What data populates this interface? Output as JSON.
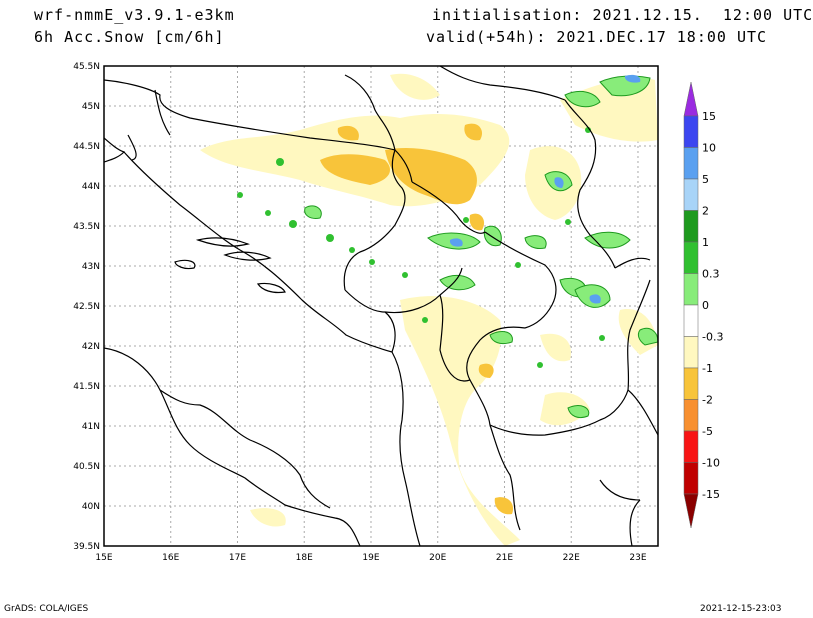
{
  "header": {
    "model": "wrf-nmmE_v3.9.1-e3km",
    "field": "6h Acc.Snow [cm/6h]",
    "init": "initialisation: 2021.12.15.  12:00 UTC",
    "valid": "valid(+54h): 2021.DEC.17 18:00 UTC"
  },
  "map": {
    "lat_labels": [
      "45.5N",
      "45N",
      "44.5N",
      "44N",
      "43.5N",
      "43N",
      "42.5N",
      "42N",
      "41.5N",
      "41N",
      "40.5N",
      "40N",
      "39.5N"
    ],
    "lon_labels": [
      "15E",
      "16E",
      "17E",
      "18E",
      "19E",
      "20E",
      "21E",
      "22E",
      "23E"
    ],
    "lon_range": [
      15.0,
      23.3
    ],
    "lat_range": [
      39.5,
      45.5
    ]
  },
  "colorbar": {
    "labels": [
      "15",
      "10",
      "5",
      "2",
      "1",
      "0.3",
      "0",
      "-0.3",
      "-1",
      "-2",
      "-5",
      "-10",
      "-15"
    ],
    "colors": [
      "#9a2be0",
      "#3c46f0",
      "#5aa0f0",
      "#a8d4f8",
      "#1e9a1e",
      "#30c030",
      "#88ec7a",
      "#ffffff",
      "#fff8c0",
      "#f8c43a",
      "#f89030",
      "#f81414",
      "#c00000",
      "#8a0000"
    ]
  },
  "footer": {
    "left": "GrADS: COLA/IGES",
    "right": "2021-12-15-23:03"
  }
}
